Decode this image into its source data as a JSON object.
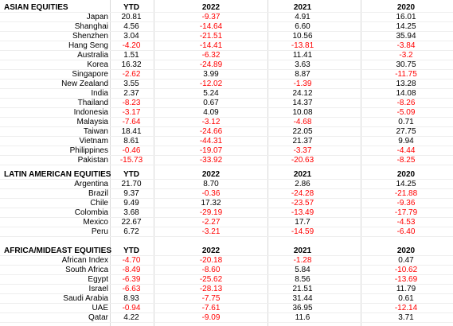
{
  "colors": {
    "negative": "#ff0000",
    "positive": "#000000",
    "grid": "#d8d8d8"
  },
  "sections": [
    {
      "title": "ASIAN EQUITIES",
      "headers": [
        "YTD",
        "2022",
        "2021",
        "2020"
      ],
      "rows": [
        {
          "label": "Japan",
          "values": [
            "20.81",
            "-9.37",
            "4.91",
            "16.01"
          ]
        },
        {
          "label": "Shanghai",
          "values": [
            "4.56",
            "-14.64",
            "6.60",
            "14.25"
          ]
        },
        {
          "label": "Shenzhen",
          "values": [
            "3.04",
            "-21.51",
            "10.56",
            "35.94"
          ]
        },
        {
          "label": "Hang Seng",
          "values": [
            "-4.20",
            "-14.41",
            "-13.81",
            "-3.84"
          ]
        },
        {
          "label": "Australia",
          "values": [
            "1.51",
            "-6.32",
            "11.41",
            "-3.2"
          ]
        },
        {
          "label": "Korea",
          "values": [
            "16.32",
            "-24.89",
            "3.63",
            "30.75"
          ]
        },
        {
          "label": "Singapore",
          "values": [
            "-2.62",
            "3.99",
            "8.87",
            "-11.75"
          ]
        },
        {
          "label": "New Zealand",
          "values": [
            "3.55",
            "-12.02",
            "-1.39",
            "13.28"
          ]
        },
        {
          "label": "India",
          "values": [
            "2.37",
            "5.24",
            "24.12",
            "14.08"
          ]
        },
        {
          "label": "Thailand",
          "values": [
            "-8.23",
            "0.67",
            "14.37",
            "-8.26"
          ]
        },
        {
          "label": "Indonesia",
          "values": [
            "-3.17",
            "4.09",
            "10.08",
            "-5.09"
          ]
        },
        {
          "label": "Malaysia",
          "values": [
            "-7.64",
            "-3.12",
            "-4.68",
            "0.71"
          ]
        },
        {
          "label": "Taiwan",
          "values": [
            "18.41",
            "-24.66",
            "22.05",
            "27.75"
          ]
        },
        {
          "label": "Vietnam",
          "values": [
            "8.61",
            "-44.31",
            "21.37",
            "9.94"
          ]
        },
        {
          "label": "Philippines",
          "values": [
            "-0.46",
            "-19.07",
            "-3.37",
            "-4.44"
          ]
        },
        {
          "label": "Pakistan",
          "values": [
            "-15.73",
            "-33.92",
            "-20.63",
            "-8.25"
          ]
        }
      ]
    },
    {
      "title": "LATIN AMERICAN EQUITIES",
      "headers": [
        "YTD",
        "2022",
        "2021",
        "2020"
      ],
      "rows": [
        {
          "label": "Argentina",
          "values": [
            "21.70",
            "8.70",
            "2.86",
            "14.25"
          ]
        },
        {
          "label": "Brazil",
          "values": [
            "9.37",
            "-0.36",
            "-24.28",
            "-21.88"
          ]
        },
        {
          "label": "Chile",
          "values": [
            "9.49",
            "17.32",
            "-23.57",
            "-9.36"
          ]
        },
        {
          "label": "Colombia",
          "values": [
            "3.68",
            "-29.19",
            "-13.49",
            "-17.79"
          ]
        },
        {
          "label": "Mexico",
          "values": [
            "22.67",
            "-2.27",
            "17.7",
            "-4.53"
          ]
        },
        {
          "label": "Peru",
          "values": [
            "6.72",
            "-3.21",
            "-14.59",
            "-6.40"
          ]
        }
      ]
    },
    {
      "title": "AFRICA/MIDEAST EQUITIES",
      "headers": [
        "YTD",
        "2022",
        "2021",
        "2020"
      ],
      "rows": [
        {
          "label": "African Index",
          "values": [
            "-4.70",
            "-20.18",
            "-1.28",
            "0.47"
          ]
        },
        {
          "label": "South Africa",
          "values": [
            "-8.49",
            "-8.60",
            "5.84",
            "-10.62"
          ]
        },
        {
          "label": "Egypt",
          "values": [
            "-6.39",
            "-25.62",
            "8.56",
            "-13.69"
          ]
        },
        {
          "label": "Israel",
          "values": [
            "-6.63",
            "-28.13",
            "21.51",
            "11.79"
          ]
        },
        {
          "label": "Saudi Arabia",
          "values": [
            "8.93",
            "-7.75",
            "31.44",
            "0.61"
          ]
        },
        {
          "label": "UAE",
          "values": [
            "-0.94",
            "-7.61",
            "36.95",
            "-12.14"
          ]
        },
        {
          "label": "Qatar",
          "values": [
            "4.22",
            "-9.09",
            "11.6",
            "3.71"
          ]
        }
      ]
    }
  ]
}
